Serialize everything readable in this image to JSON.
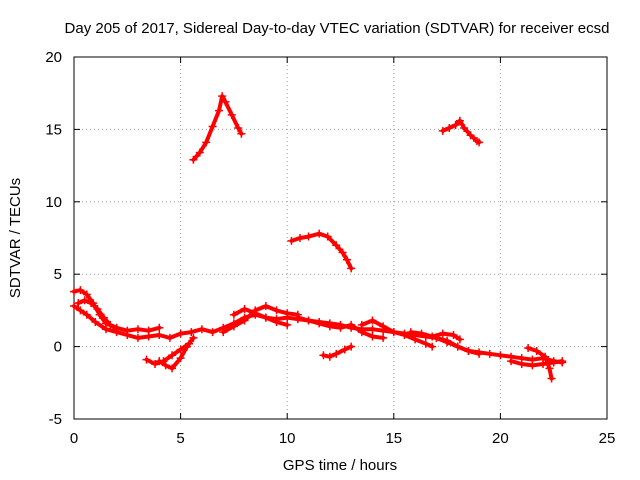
{
  "chart_data": {
    "type": "scatter",
    "title": "Day 205 of 2017, Sidereal Day-to-day VTEC variation (SDTVAR) for receiver ecsd",
    "xlabel": "GPS time / hours",
    "ylabel": "SDTVAR / TECUs",
    "xlim": [
      0,
      25
    ],
    "ylim": [
      -5,
      20
    ],
    "grid": true,
    "x_ticks": [
      0,
      5,
      10,
      15,
      20,
      25
    ],
    "y_ticks": [
      -5,
      0,
      5,
      10,
      15,
      20
    ],
    "x_tick_labels": [
      "0",
      "5",
      "10",
      "15",
      "20",
      "25"
    ],
    "y_tick_labels": [
      "-5",
      "0",
      "5",
      "10",
      "15",
      "20"
    ],
    "series_color": "#ff0000",
    "series": [
      {
        "name": "track-a",
        "points": [
          [
            0.0,
            2.8
          ],
          [
            0.3,
            2.5
          ],
          [
            0.6,
            2.2
          ],
          [
            1.0,
            1.7
          ],
          [
            1.5,
            1.2
          ],
          [
            2.0,
            1.0
          ],
          [
            2.5,
            0.8
          ],
          [
            3.0,
            0.6
          ],
          [
            3.5,
            0.7
          ],
          [
            4.0,
            0.8
          ],
          [
            4.5,
            0.6
          ],
          [
            5.0,
            0.9
          ],
          [
            5.5,
            1.0
          ],
          [
            6.0,
            1.2
          ],
          [
            6.5,
            1.0
          ],
          [
            7.0,
            1.3
          ],
          [
            7.5,
            1.6
          ],
          [
            8.0,
            2.0
          ],
          [
            8.5,
            2.2
          ],
          [
            9.0,
            2.0
          ],
          [
            9.5,
            1.9
          ],
          [
            10.0,
            2.0
          ],
          [
            10.5,
            1.9
          ],
          [
            11.0,
            1.8
          ],
          [
            11.5,
            1.7
          ],
          [
            12.0,
            1.6
          ],
          [
            12.5,
            1.5
          ],
          [
            13.0,
            1.3
          ],
          [
            13.5,
            1.2
          ],
          [
            14.0,
            1.2
          ],
          [
            14.5,
            1.1
          ],
          [
            15.0,
            1.0
          ],
          [
            15.5,
            0.9
          ],
          [
            16.0,
            0.8
          ],
          [
            16.5,
            0.7
          ],
          [
            17.0,
            0.6
          ],
          [
            17.5,
            0.3
          ],
          [
            18.0,
            0.0
          ],
          [
            18.5,
            -0.3
          ],
          [
            19.0,
            -0.4
          ],
          [
            19.5,
            -0.5
          ],
          [
            20.0,
            -0.6
          ],
          [
            20.5,
            -0.7
          ],
          [
            21.0,
            -0.8
          ],
          [
            21.5,
            -0.9
          ],
          [
            22.0,
            -0.8
          ],
          [
            22.5,
            -1.0
          ],
          [
            22.9,
            -1.1
          ]
        ]
      },
      {
        "name": "track-b",
        "points": [
          [
            0.0,
            3.8
          ],
          [
            0.3,
            3.9
          ],
          [
            0.6,
            3.6
          ],
          [
            0.9,
            3.0
          ],
          [
            1.2,
            2.2
          ],
          [
            1.5,
            1.6
          ],
          [
            2.0,
            1.3
          ],
          [
            2.5,
            1.1
          ],
          [
            3.0,
            1.2
          ],
          [
            3.5,
            1.1
          ],
          [
            4.0,
            1.3
          ]
        ]
      },
      {
        "name": "track-c",
        "points": [
          [
            0.2,
            3.0
          ],
          [
            0.5,
            3.2
          ],
          [
            0.8,
            3.0
          ],
          [
            1.1,
            2.6
          ],
          [
            1.4,
            2.0
          ],
          [
            1.7,
            1.5
          ],
          [
            2.0,
            1.2
          ]
        ]
      },
      {
        "name": "track-d",
        "points": [
          [
            3.4,
            -0.9
          ],
          [
            3.8,
            -1.2
          ],
          [
            4.2,
            -1.0
          ],
          [
            4.6,
            -0.6
          ],
          [
            5.0,
            -0.2
          ],
          [
            5.4,
            0.2
          ]
        ]
      },
      {
        "name": "track-e",
        "points": [
          [
            4.0,
            -1.0
          ],
          [
            4.3,
            -1.3
          ],
          [
            4.6,
            -1.5
          ],
          [
            5.0,
            -0.8
          ],
          [
            5.3,
            0.0
          ],
          [
            5.6,
            0.6
          ]
        ]
      },
      {
        "name": "track-f",
        "points": [
          [
            7.0,
            1.0
          ],
          [
            7.5,
            1.4
          ],
          [
            8.0,
            1.8
          ],
          [
            8.5,
            2.5
          ],
          [
            9.0,
            2.8
          ],
          [
            9.5,
            2.5
          ],
          [
            10.0,
            2.3
          ],
          [
            10.5,
            2.2
          ]
        ]
      },
      {
        "name": "track-g",
        "points": [
          [
            7.5,
            2.2
          ],
          [
            8.0,
            2.6
          ],
          [
            8.5,
            2.3
          ],
          [
            9.0,
            2.0
          ],
          [
            9.5,
            1.7
          ],
          [
            10.0,
            1.5
          ]
        ]
      },
      {
        "name": "track-h",
        "points": [
          [
            11.7,
            -0.6
          ],
          [
            12.0,
            -0.7
          ],
          [
            12.3,
            -0.5
          ],
          [
            12.7,
            -0.2
          ],
          [
            13.0,
            0.0
          ]
        ]
      },
      {
        "name": "track-i",
        "points": [
          [
            10.5,
            2.0
          ],
          [
            11.0,
            1.8
          ],
          [
            11.5,
            1.6
          ],
          [
            12.0,
            1.4
          ],
          [
            12.5,
            1.3
          ],
          [
            13.0,
            1.5
          ],
          [
            13.5,
            1.0
          ],
          [
            14.0,
            0.7
          ],
          [
            14.5,
            0.6
          ]
        ]
      },
      {
        "name": "track-j",
        "points": [
          [
            13.5,
            1.5
          ],
          [
            14.0,
            1.8
          ],
          [
            14.5,
            1.4
          ],
          [
            15.0,
            1.0
          ],
          [
            15.5,
            0.8
          ],
          [
            16.0,
            0.5
          ],
          [
            16.5,
            0.2
          ],
          [
            16.8,
            0.0
          ]
        ]
      },
      {
        "name": "track-k",
        "points": [
          [
            15.8,
            1.0
          ],
          [
            16.3,
            0.9
          ],
          [
            16.8,
            0.7
          ],
          [
            17.3,
            0.9
          ],
          [
            17.8,
            0.8
          ],
          [
            18.1,
            0.5
          ]
        ]
      },
      {
        "name": "track-l",
        "points": [
          [
            17.0,
            0.6
          ],
          [
            17.5,
            0.4
          ],
          [
            18.0,
            0.0
          ],
          [
            18.5,
            -0.3
          ],
          [
            19.0,
            -0.5
          ]
        ]
      },
      {
        "name": "track-m",
        "points": [
          [
            20.5,
            -1.0
          ],
          [
            21.0,
            -1.2
          ],
          [
            21.5,
            -1.3
          ],
          [
            22.0,
            -1.2
          ],
          [
            22.5,
            -1.1
          ],
          [
            22.9,
            -1.0
          ]
        ]
      },
      {
        "name": "track-n",
        "points": [
          [
            21.3,
            -0.1
          ],
          [
            21.7,
            -0.3
          ],
          [
            22.1,
            -0.7
          ],
          [
            22.3,
            -1.5
          ],
          [
            22.4,
            -2.2
          ]
        ]
      },
      {
        "name": "track-o",
        "points": [
          [
            5.6,
            12.9
          ],
          [
            5.9,
            13.4
          ],
          [
            6.2,
            14.1
          ],
          [
            6.5,
            15.2
          ],
          [
            6.8,
            16.3
          ],
          [
            6.95,
            17.3
          ],
          [
            7.1,
            16.9
          ],
          [
            7.4,
            16.0
          ],
          [
            7.7,
            15.1
          ],
          [
            7.85,
            14.7
          ]
        ]
      },
      {
        "name": "track-p",
        "points": [
          [
            10.2,
            7.3
          ],
          [
            10.6,
            7.5
          ],
          [
            11.0,
            7.6
          ],
          [
            11.5,
            7.8
          ],
          [
            11.9,
            7.6
          ],
          [
            12.3,
            7.0
          ],
          [
            12.6,
            6.5
          ],
          [
            12.8,
            6.0
          ],
          [
            13.0,
            5.4
          ]
        ]
      },
      {
        "name": "track-q",
        "points": [
          [
            17.3,
            14.9
          ],
          [
            17.6,
            15.1
          ],
          [
            17.9,
            15.3
          ],
          [
            18.1,
            15.6
          ],
          [
            18.3,
            15.1
          ],
          [
            18.6,
            14.6
          ],
          [
            18.9,
            14.2
          ],
          [
            19.0,
            14.1
          ]
        ]
      }
    ]
  }
}
